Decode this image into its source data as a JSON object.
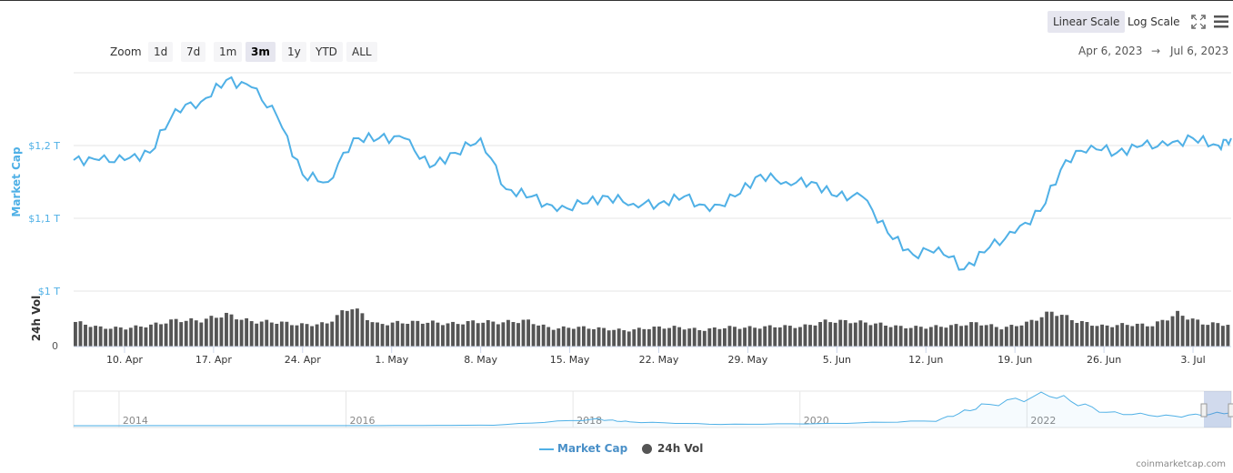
{
  "toolbar": {
    "linear_scale": "Linear Scale",
    "log_scale": "Log Scale"
  },
  "zoom": {
    "label": "Zoom",
    "options": [
      "1d",
      "7d",
      "1m",
      "3m",
      "1y",
      "YTD",
      "ALL"
    ],
    "selected": "3m"
  },
  "range": {
    "from": "Apr 6, 2023",
    "separator": "→",
    "to": "Jul 6, 2023"
  },
  "credits": "coinmarketcap.com",
  "colors": {
    "market_cap_line": "#4fb0e6",
    "volume_bar": "#555555",
    "axis_label": "#4fb0e6",
    "navigator_series": "#4fb0e6",
    "navigator_selection": "#ccd6eb"
  },
  "chart_data": {
    "type": "line",
    "title": "",
    "x_dates": [
      "2023-04-06",
      "2023-04-08",
      "2023-04-10",
      "2023-04-12",
      "2023-04-14",
      "2023-04-16",
      "2023-04-18",
      "2023-04-20",
      "2023-04-22",
      "2023-04-24",
      "2023-04-26",
      "2023-04-28",
      "2023-04-30",
      "2023-05-02",
      "2023-05-04",
      "2023-05-06",
      "2023-05-08",
      "2023-05-10",
      "2023-05-12",
      "2023-05-14",
      "2023-05-16",
      "2023-05-18",
      "2023-05-20",
      "2023-05-22",
      "2023-05-24",
      "2023-05-26",
      "2023-05-28",
      "2023-05-30",
      "2023-06-01",
      "2023-06-03",
      "2023-06-05",
      "2023-06-07",
      "2023-06-09",
      "2023-06-11",
      "2023-06-13",
      "2023-06-15",
      "2023-06-17",
      "2023-06-19",
      "2023-06-21",
      "2023-06-23",
      "2023-06-25",
      "2023-06-27",
      "2023-06-29",
      "2023-07-01",
      "2023-07-03",
      "2023-07-05",
      "2023-07-06"
    ],
    "series": [
      {
        "name": "Market Cap",
        "y_axis": "Market Cap",
        "unit": "T USD",
        "values": [
          1.18,
          1.18,
          1.18,
          1.19,
          1.25,
          1.26,
          1.29,
          1.28,
          1.24,
          1.16,
          1.15,
          1.21,
          1.21,
          1.21,
          1.17,
          1.19,
          1.21,
          1.14,
          1.13,
          1.11,
          1.12,
          1.13,
          1.12,
          1.12,
          1.13,
          1.11,
          1.13,
          1.16,
          1.15,
          1.15,
          1.13,
          1.13,
          1.08,
          1.05,
          1.06,
          1.03,
          1.06,
          1.08,
          1.11,
          1.18,
          1.2,
          1.19,
          1.2,
          1.2,
          1.21,
          1.2,
          1.21
        ]
      },
      {
        "name": "24h Vol",
        "y_axis": "24h Vol",
        "values": [
          0.52,
          0.4,
          0.39,
          0.45,
          0.56,
          0.55,
          0.68,
          0.53,
          0.52,
          0.46,
          0.48,
          0.85,
          0.47,
          0.51,
          0.52,
          0.48,
          0.53,
          0.51,
          0.55,
          0.38,
          0.41,
          0.38,
          0.34,
          0.4,
          0.41,
          0.35,
          0.41,
          0.4,
          0.43,
          0.42,
          0.54,
          0.53,
          0.48,
          0.41,
          0.41,
          0.44,
          0.5,
          0.39,
          0.5,
          0.74,
          0.53,
          0.43,
          0.47,
          0.45,
          0.7,
          0.49,
          0.47
        ]
      }
    ],
    "y_axis_label": "Market Cap",
    "y_ticks": [
      "$1 T",
      "$1,1 T",
      "$1,2 T"
    ],
    "y_tick_values": [
      1.0,
      1.1,
      1.2
    ],
    "volume_axis_label": "24h Vol",
    "volume_ticks": [
      "0"
    ],
    "x_tick_labels": [
      "10. Apr",
      "17. Apr",
      "24. Apr",
      "1. May",
      "8. May",
      "15. May",
      "22. May",
      "29. May",
      "5. Jun",
      "12. Jun",
      "19. Jun",
      "26. Jun",
      "3. Jul"
    ],
    "x_tick_dates": [
      "2023-04-10",
      "2023-04-17",
      "2023-04-24",
      "2023-05-01",
      "2023-05-08",
      "2023-05-15",
      "2023-05-22",
      "2023-05-29",
      "2023-06-05",
      "2023-06-12",
      "2023-06-19",
      "2023-06-26",
      "2023-07-03"
    ],
    "navigator": {
      "tick_labels": [
        "2014",
        "2016",
        "2018",
        "2020",
        "2022"
      ],
      "years": [
        2013.3,
        2014,
        2015,
        2016,
        2017,
        2017.9,
        2018.2,
        2019,
        2020,
        2020.9,
        2021.3,
        2021.9,
        2022.4,
        2023,
        2023.5
      ],
      "values": [
        0.002,
        0.005,
        0.006,
        0.01,
        0.05,
        0.6,
        0.35,
        0.12,
        0.2,
        0.45,
        1.8,
        2.9,
        1.2,
        0.85,
        1.19
      ]
    },
    "legend": [
      {
        "name": "Market Cap",
        "marker": "line"
      },
      {
        "name": "24h Vol",
        "marker": "dot"
      }
    ],
    "legend_position": "bottom-center",
    "grid": true
  }
}
